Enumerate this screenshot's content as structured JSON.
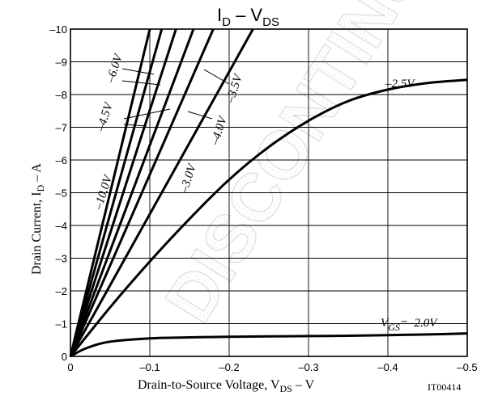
{
  "chart_data": {
    "type": "line",
    "title_parts": {
      "main": "I",
      "sub": "D",
      "mid": " – V",
      "sub2": "DS"
    },
    "ylabel_parts": {
      "main": "Drain Current, I",
      "sub": "D",
      "tail": " – A"
    },
    "xlabel_parts": {
      "main": "Drain-to-Source Voltage, V",
      "sub": "DS",
      "tail": " – V"
    },
    "x_tick_labels": [
      "0",
      "–0.1",
      "–0.2",
      "–0.3",
      "–0.4",
      "–0.5"
    ],
    "y_tick_labels": [
      "0",
      "–1",
      "–2",
      "–3",
      "–4",
      "–5",
      "–6",
      "–7",
      "–8",
      "–9",
      "–10"
    ],
    "xlim": [
      0,
      -0.5
    ],
    "ylim": [
      0,
      -10
    ],
    "grid": true,
    "figure_code": "IT00414",
    "watermark": "DISCONTINUED",
    "series": [
      {
        "name": "–10.0V",
        "x": [
          0,
          -0.1
        ],
        "y": [
          0,
          -10
        ]
      },
      {
        "name": "–6.0V",
        "x": [
          0,
          -0.115
        ],
        "y": [
          0,
          -10
        ]
      },
      {
        "name": "–4.5V",
        "x": [
          0,
          -0.133
        ],
        "y": [
          0,
          -10
        ]
      },
      {
        "name": "–4.0V",
        "x": [
          0,
          -0.155
        ],
        "y": [
          0,
          -10
        ]
      },
      {
        "name": "–3.5V",
        "x": [
          0,
          -0.18
        ],
        "y": [
          0,
          -10
        ]
      },
      {
        "name": "–3.0V",
        "x": [
          0,
          -0.23
        ],
        "y": [
          0,
          -10
        ]
      },
      {
        "name": "–2.5V",
        "x": [
          0,
          -0.05,
          -0.1,
          -0.15,
          -0.2,
          -0.25,
          -0.3,
          -0.35,
          -0.4,
          -0.45,
          -0.5
        ],
        "y": [
          0,
          -1.5,
          -2.9,
          -4.2,
          -5.4,
          -6.4,
          -7.2,
          -7.8,
          -8.15,
          -8.35,
          -8.45
        ]
      },
      {
        "name": "V",
        "name_sub": "GS",
        "name_tail": "=–2.0V",
        "x": [
          0,
          -0.02,
          -0.05,
          -0.1,
          -0.15,
          -0.2,
          -0.25,
          -0.3,
          -0.35,
          -0.4,
          -0.45,
          -0.5
        ],
        "y": [
          0,
          -0.25,
          -0.45,
          -0.55,
          -0.58,
          -0.6,
          -0.61,
          -0.62,
          -0.63,
          -0.65,
          -0.67,
          -0.7
        ]
      }
    ]
  }
}
